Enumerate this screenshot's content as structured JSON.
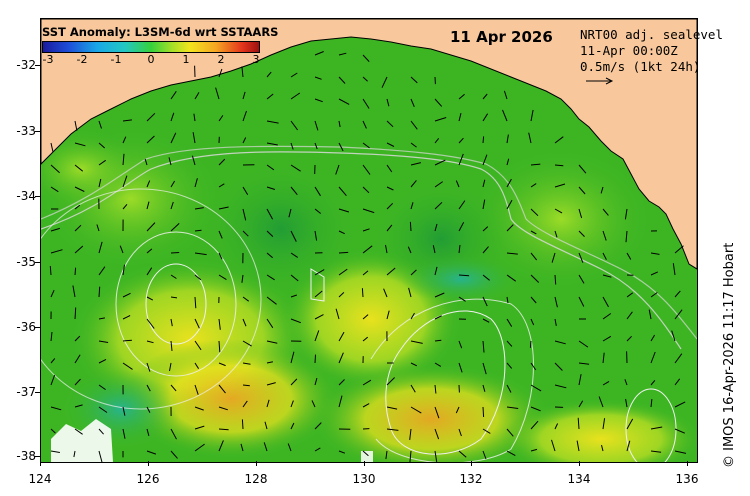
{
  "legend": {
    "title": "SST Anomaly: L3SM-6d wrt SSTAARS",
    "ticks": [
      "-3",
      "-2",
      "-1",
      "0",
      "1",
      "2",
      "3"
    ],
    "colors": [
      "#1a1a9e",
      "#1e4fd8",
      "#1aa7e6",
      "#23c7c2",
      "#36d13c",
      "#a7e028",
      "#f2e41d",
      "#f5a623",
      "#e5371c",
      "#9e1010"
    ]
  },
  "date": "11 Apr 2026",
  "current_info": {
    "line1": "NRT00 adj. sealevel",
    "line2": "11-Apr 00:00Z",
    "line3": "0.5m/s (1kt 24h)"
  },
  "credit": "© IMOS 16-Apr-2026 11:17 Hobart",
  "axes": {
    "lat_ticks": [
      "-32",
      "-33",
      "-34",
      "-35",
      "-36",
      "-37",
      "-38"
    ],
    "lon_ticks": [
      "124",
      "126",
      "128",
      "130",
      "132",
      "134",
      "136"
    ]
  },
  "map": {
    "land_color": "#f8c89c",
    "ocean_base_color": "#3db523",
    "icon": "current-vector-arrows",
    "contour_color": "#e8e8e8"
  }
}
